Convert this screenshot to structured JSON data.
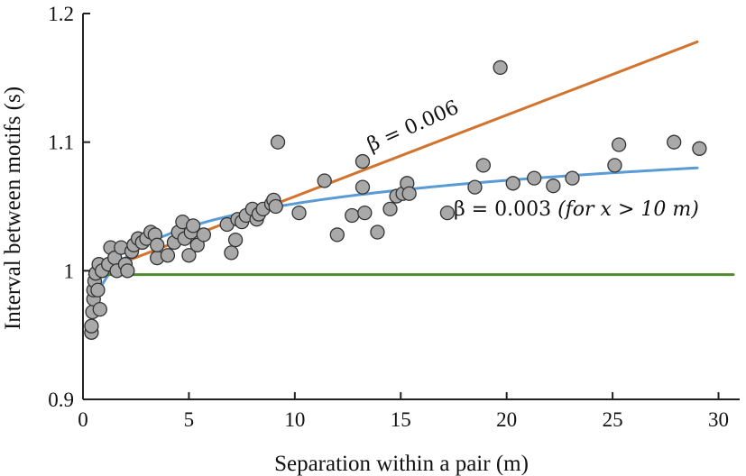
{
  "chart_data": {
    "type": "scatter",
    "xlabel": "Separation within a pair (m)",
    "ylabel": "Interval between motifs (s)",
    "xlim": [
      0,
      31
    ],
    "ylim": [
      0.9,
      1.2
    ],
    "x_ticks": [
      0,
      5,
      10,
      15,
      20,
      25,
      30
    ],
    "x_tick_labels": [
      "0",
      "5",
      "10",
      "15",
      "20",
      "25",
      "30"
    ],
    "y_ticks": [
      0.9,
      1.0,
      1.1,
      1.2
    ],
    "y_tick_labels": [
      "0.9",
      "1",
      "1.1",
      "1.2"
    ],
    "grid": false,
    "points": [
      [
        0.4,
        0.952
      ],
      [
        0.4,
        0.957
      ],
      [
        0.45,
        0.968
      ],
      [
        0.5,
        0.978
      ],
      [
        0.5,
        0.985
      ],
      [
        0.55,
        0.992
      ],
      [
        0.6,
        0.998
      ],
      [
        0.7,
        0.985
      ],
      [
        0.75,
        1.005
      ],
      [
        0.8,
        0.97
      ],
      [
        0.9,
        1.0
      ],
      [
        1.2,
        1.005
      ],
      [
        1.3,
        1.018
      ],
      [
        1.5,
        1.01
      ],
      [
        1.6,
        1.0
      ],
      [
        1.8,
        1.018
      ],
      [
        2.0,
        1.005
      ],
      [
        2.1,
        1.0
      ],
      [
        2.3,
        1.015
      ],
      [
        2.4,
        1.02
      ],
      [
        2.6,
        1.025
      ],
      [
        2.8,
        1.022
      ],
      [
        3.0,
        1.025
      ],
      [
        3.2,
        1.03
      ],
      [
        3.4,
        1.028
      ],
      [
        3.5,
        1.01
      ],
      [
        3.5,
        1.02
      ],
      [
        4.0,
        1.012
      ],
      [
        4.3,
        1.022
      ],
      [
        4.5,
        1.03
      ],
      [
        4.7,
        1.038
      ],
      [
        4.8,
        1.025
      ],
      [
        5.0,
        1.012
      ],
      [
        5.1,
        1.03
      ],
      [
        5.2,
        1.035
      ],
      [
        5.4,
        1.02
      ],
      [
        5.7,
        1.028
      ],
      [
        6.8,
        1.036
      ],
      [
        7.0,
        1.014
      ],
      [
        7.2,
        1.024
      ],
      [
        7.3,
        1.04
      ],
      [
        7.5,
        1.038
      ],
      [
        7.7,
        1.043
      ],
      [
        8.0,
        1.048
      ],
      [
        8.2,
        1.04
      ],
      [
        8.3,
        1.044
      ],
      [
        8.5,
        1.048
      ],
      [
        8.9,
        1.052
      ],
      [
        9.0,
        1.055
      ],
      [
        9.1,
        1.05
      ],
      [
        9.2,
        1.1
      ],
      [
        10.2,
        1.045
      ],
      [
        11.4,
        1.07
      ],
      [
        12.0,
        1.028
      ],
      [
        12.7,
        1.043
      ],
      [
        13.2,
        1.085
      ],
      [
        13.2,
        1.065
      ],
      [
        13.3,
        1.045
      ],
      [
        13.9,
        1.03
      ],
      [
        14.5,
        1.048
      ],
      [
        14.8,
        1.058
      ],
      [
        15.1,
        1.06
      ],
      [
        15.3,
        1.068
      ],
      [
        15.4,
        1.06
      ],
      [
        17.2,
        1.045
      ],
      [
        18.5,
        1.065
      ],
      [
        18.9,
        1.082
      ],
      [
        19.7,
        1.158
      ],
      [
        20.3,
        1.068
      ],
      [
        21.3,
        1.072
      ],
      [
        22.2,
        1.066
      ],
      [
        23.1,
        1.072
      ],
      [
        25.1,
        1.082
      ],
      [
        25.3,
        1.098
      ],
      [
        27.9,
        1.1
      ],
      [
        29.1,
        1.095
      ]
    ],
    "lines": [
      {
        "label": "β = 0.006",
        "color": "#d2732e",
        "type": "linear",
        "x": [
          0.4,
          29
        ],
        "y": [
          0.997,
          1.178
        ]
      },
      {
        "label": "β = 0.003",
        "label_suffix": "(for x > 10 m)",
        "color": "#5b9bd5",
        "type": "log-fit",
        "x0": 0.4,
        "y0": 0.968,
        "x1": 29,
        "y1": 1.08
      },
      {
        "label": "",
        "color": "#4e8a2e",
        "type": "horizontal",
        "x": [
          0.3,
          30.7
        ],
        "y": [
          0.997,
          0.997
        ]
      }
    ],
    "annotations": [
      {
        "text": "β = 0.006",
        "x": 15.7,
        "y": 1.108,
        "rotate": -24
      },
      {
        "text": "β = 0.003",
        "suffix": "(for x > 10 m)",
        "x": 17.5,
        "y": 1.043
      }
    ],
    "colors": {
      "points_fill": "#a9a9a9",
      "points_stroke": "#333333",
      "axis": "#222222"
    }
  }
}
